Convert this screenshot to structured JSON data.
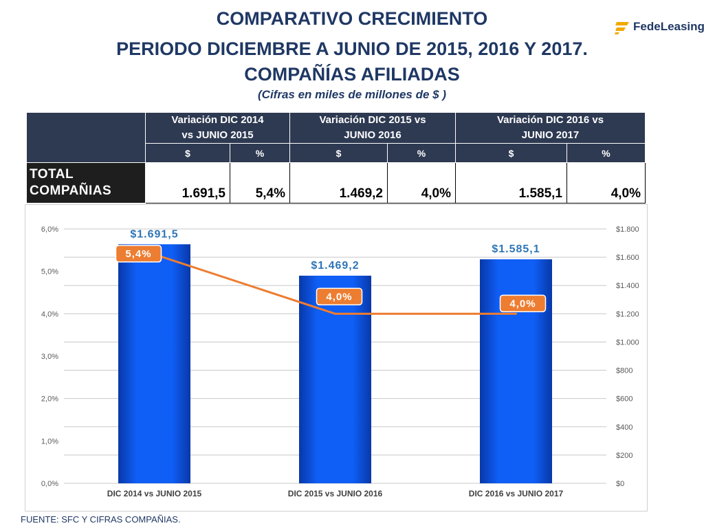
{
  "title": {
    "line1": "COMPARATIVO CRECIMIENTO",
    "line2": "PERIODO DICIEMBRE A JUNIO  DE 2015, 2016 Y 2017.",
    "line3": "COMPAÑÍAS AFILIADAS",
    "subtitle": "(Cifras en miles de millones de $ )"
  },
  "logo": {
    "text_a": "Fede",
    "text_b": "Leasing"
  },
  "summary_table": {
    "groups": [
      {
        "line1": "Variación DIC 2014",
        "line2": "vs JUNIO 2015"
      },
      {
        "line1": "Variación DIC 2015 vs",
        "line2": "JUNIO 2016"
      },
      {
        "line1": "Variación DIC 2016 vs",
        "line2": "JUNIO 2017"
      }
    ],
    "subheaders": [
      "$",
      "%",
      "$",
      "%",
      "$",
      "%"
    ],
    "row_label": {
      "line1": "TOTAL",
      "line2": "COMPAÑIAS"
    },
    "values": [
      "1.691,5",
      "5,4%",
      "1.469,2",
      "4,0%",
      "1.585,1",
      "4,0%"
    ]
  },
  "chart_data": {
    "type": "bar",
    "categories": [
      "DIC 2014 vs JUNIO 2015",
      "DIC 2015 vs JUNIO 2016",
      "DIC 2016 vs JUNIO 2017"
    ],
    "series": [
      {
        "type": "bar",
        "axis": "right",
        "values": [
          1691.5,
          1469.2,
          1585.1
        ],
        "labels": [
          "$1.691,5",
          "$1.469,2",
          "$1.585,1"
        ]
      },
      {
        "type": "line",
        "axis": "left",
        "values": [
          5.4,
          4.0,
          4.0
        ],
        "labels": [
          "5,4%",
          "4,0%",
          "4,0%"
        ]
      }
    ],
    "left_axis": {
      "ylim": [
        0,
        6
      ],
      "ticks": [
        0,
        1,
        2,
        3,
        4,
        5,
        6
      ],
      "tick_labels": [
        "0,0%",
        "1,0%",
        "2,0%",
        "3,0%",
        "4,0%",
        "5,0%",
        "6,0%"
      ]
    },
    "right_axis": {
      "ylim": [
        0,
        1800
      ],
      "ticks": [
        0,
        200,
        400,
        600,
        800,
        1000,
        1200,
        1400,
        1600,
        1800
      ],
      "tick_labels": [
        "$0",
        "$200",
        "$400",
        "$600",
        "$800",
        "$1.000",
        "$1.200",
        "$1.400",
        "$1.600",
        "$1.800"
      ]
    },
    "grid": true,
    "colors": {
      "bar": "#0f5ef5",
      "bar_dark": "#0838a8",
      "line": "#ed7d31",
      "bar_label": "#2e75b6",
      "grid": "#c8c8c8",
      "axis_text": "#595959"
    }
  },
  "footer": "FUENTE: SFC Y CIFRAS COMPAÑIAS."
}
